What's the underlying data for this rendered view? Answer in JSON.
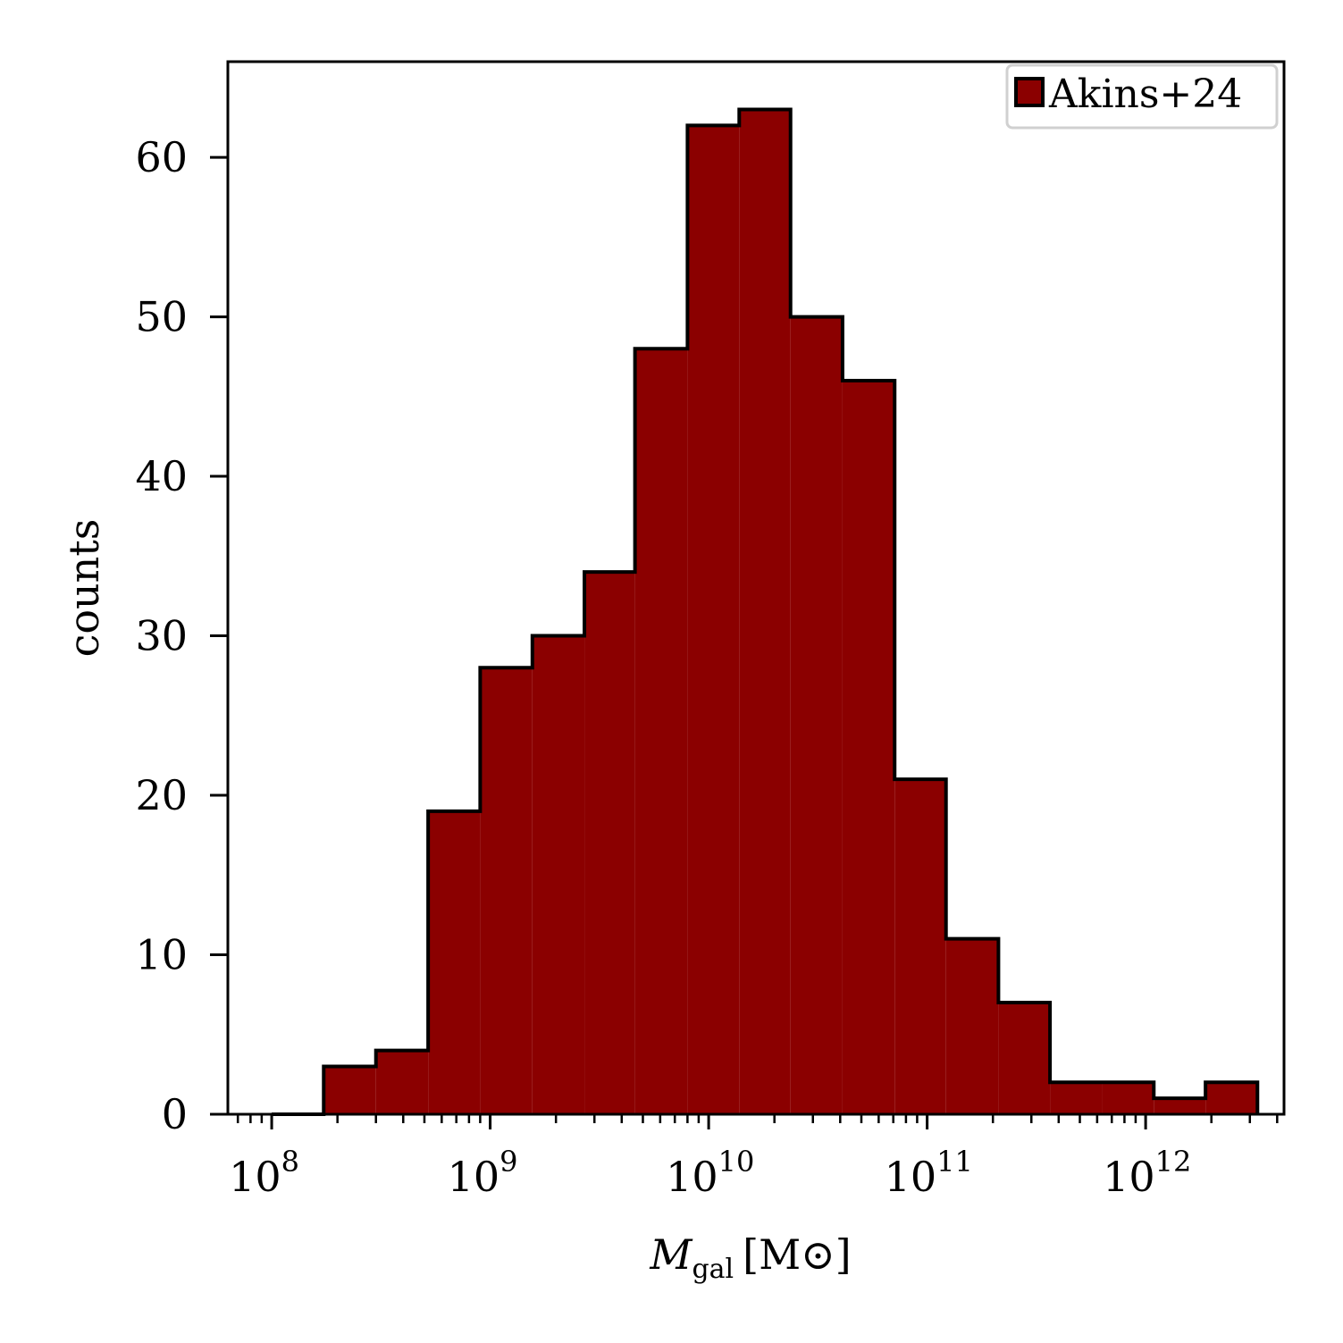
{
  "chart_data": {
    "type": "bar",
    "subtype": "log-x histogram (step, filled)",
    "xlabel": {
      "main": "M",
      "sub": "gal",
      "unit": "[M⊙]"
    },
    "ylabel": "counts",
    "xscale": "log",
    "xlim": [
      63000000.0,
      4300000000000.0
    ],
    "ylim": [
      0,
      66
    ],
    "xticks": [
      {
        "value": 100000000.0,
        "base": "10",
        "exp": "8"
      },
      {
        "value": 1000000000.0,
        "base": "10",
        "exp": "9"
      },
      {
        "value": 10000000000.0,
        "base": "10",
        "exp": "10"
      },
      {
        "value": 100000000000.0,
        "base": "10",
        "exp": "11"
      },
      {
        "value": 1000000000000.0,
        "base": "10",
        "exp": "12"
      }
    ],
    "yticks": [
      0,
      10,
      20,
      30,
      40,
      50,
      60
    ],
    "bin_edges": [
      100000000.0,
      173000000.0,
      300000000.0,
      520000000.0,
      900000000.0,
      1560000000.0,
      2700000000.0,
      4600000000.0,
      8000000000.0,
      13800000000.0,
      23700000000.0,
      41000000000.0,
      71000000000.0,
      122000000000.0,
      212000000000.0,
      365000000000.0,
      630000000000.0,
      1090000000000.0,
      1880000000000.0,
      3250000000000.0
    ],
    "counts": [
      0,
      3,
      4,
      19,
      28,
      30,
      34,
      48,
      62,
      63,
      50,
      46,
      21,
      11,
      7,
      2,
      2,
      1,
      2
    ],
    "series": [
      {
        "name": "Akins+24",
        "color": "#8b0000"
      }
    ],
    "legend_position": "top-right",
    "grid": false
  }
}
